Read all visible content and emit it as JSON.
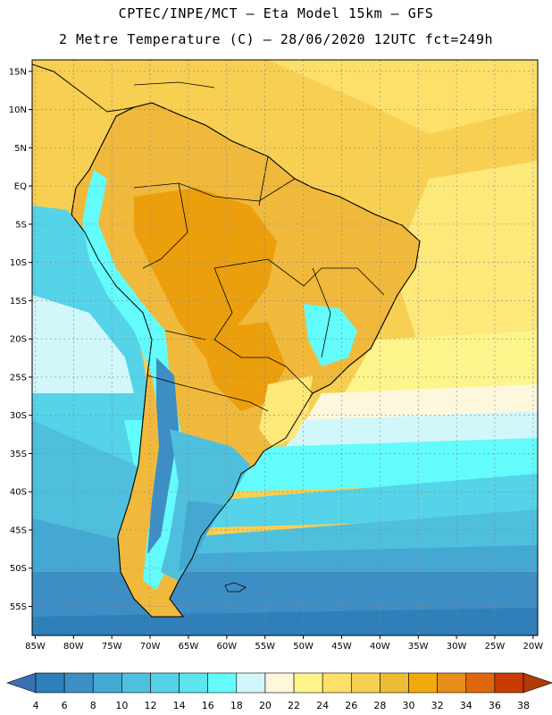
{
  "header": {
    "line1": "CPTEC/INPE/MCT –   Eta Model 15km – GFS",
    "line2": "2 Metre Temperature (C) – 28/06/2020 12UTC fct=249h"
  },
  "map": {
    "lat_labels": [
      "15N",
      "10N",
      "5N",
      "EQ",
      "5S",
      "10S",
      "15S",
      "20S",
      "25S",
      "30S",
      "35S",
      "40S",
      "45S",
      "50S",
      "55S"
    ],
    "lon_labels": [
      "85W",
      "80W",
      "75W",
      "70W",
      "65W",
      "60W",
      "55W",
      "50W",
      "45W",
      "40W",
      "35W",
      "30W",
      "25W",
      "20W"
    ],
    "lat_range": [
      16.5,
      -58.8
    ],
    "lon_range": [
      -85.4,
      -19.4
    ],
    "colors": {
      "ocean_warm": "#f7cf52",
      "ocean_mid": "#fde87a",
      "land_warm": "#f0b93c",
      "land_hot": "#ec9f0c",
      "coast": "#000000"
    }
  },
  "colorbar": {
    "ticks": [
      "4",
      "6",
      "8",
      "10",
      "12",
      "14",
      "16",
      "18",
      "20",
      "22",
      "24",
      "26",
      "28",
      "30",
      "32",
      "34",
      "36",
      "38"
    ],
    "colors": [
      "#3a6fb2",
      "#2f7fb9",
      "#3d8ec5",
      "#44a8d2",
      "#4fbfde",
      "#55d3e8",
      "#5ce5ef",
      "#63fbfb",
      "#d2f7fb",
      "#fdf7dc",
      "#fdf48c",
      "#fde06a",
      "#f7cf52",
      "#eebb36",
      "#f2a90a",
      "#e88e1a",
      "#e0660b",
      "#c83c04",
      "#b03a08",
      "#3a6fb2"
    ]
  }
}
